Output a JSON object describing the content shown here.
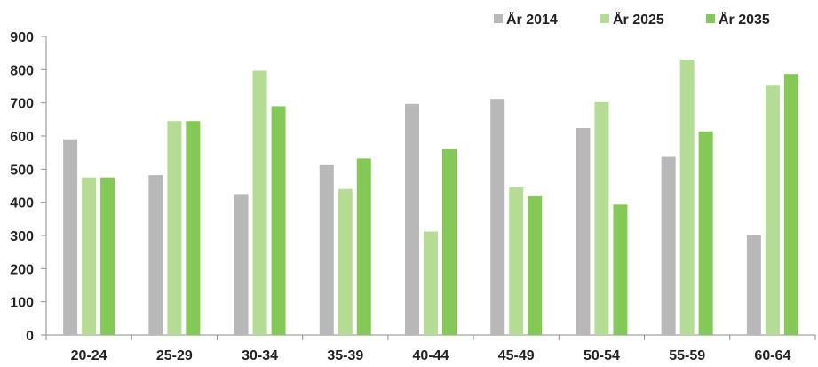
{
  "chart_data": {
    "type": "bar",
    "categories": [
      "20-24",
      "25-29",
      "30-34",
      "35-39",
      "40-44",
      "45-49",
      "50-54",
      "55-59",
      "60-64"
    ],
    "series": [
      {
        "name": "År 2014",
        "color": "#b8b8b8",
        "values": [
          590,
          482,
          425,
          512,
          697,
          712,
          624,
          537,
          302
        ]
      },
      {
        "name": "År 2025",
        "color": "#b5dc94",
        "values": [
          475,
          645,
          797,
          440,
          312,
          445,
          702,
          830,
          752
        ]
      },
      {
        "name": "År 2035",
        "color": "#84c857",
        "values": [
          475,
          645,
          690,
          532,
          560,
          418,
          393,
          614,
          787
        ]
      }
    ],
    "y_ticks": [
      "0",
      "100",
      "200",
      "300",
      "400",
      "500",
      "600",
      "700",
      "800",
      "900"
    ],
    "ylim": [
      0,
      900
    ],
    "grid": false,
    "legend_position": "top-right",
    "xlabel": "",
    "ylabel": "",
    "title": ""
  }
}
